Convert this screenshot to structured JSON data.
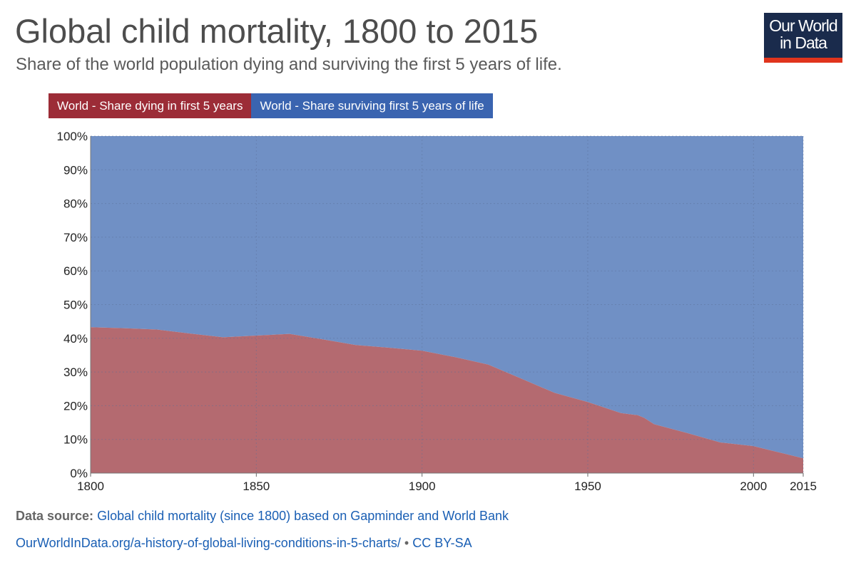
{
  "header": {
    "title": "Global child mortality, 1800 to 2015",
    "subtitle": "Share of the world population dying and surviving the first 5 years of life.",
    "logo_line1": "Our World",
    "logo_line2": "in Data"
  },
  "footer": {
    "source_label": "Data source:",
    "source_text": "Global child mortality (since 1800) based on Gapminder and World Bank",
    "url": "OurWorldInData.org/a-history-of-global-living-conditions-in-5-charts/",
    "separator": "•",
    "license": "CC BY-SA"
  },
  "colors": {
    "dying": "#b46a70",
    "surviving": "#7090c5",
    "legend_dying": "#9c2c37",
    "legend_surviving": "#3a64b0",
    "logo_bg": "#1a2b4c",
    "logo_accent": "#e0341d"
  },
  "chart_data": {
    "type": "area",
    "stacked": true,
    "title": "Global child mortality, 1800 to 2015",
    "subtitle": "Share of the world population dying and surviving the first 5 years of life.",
    "xlim": [
      1800,
      2015
    ],
    "ylim": [
      0,
      100
    ],
    "x_ticks": [
      1800,
      1850,
      1900,
      1950,
      2000,
      2015
    ],
    "y_ticks": [
      "0%",
      "10%",
      "20%",
      "30%",
      "40%",
      "50%",
      "60%",
      "70%",
      "80%",
      "90%",
      "100%"
    ],
    "grid": true,
    "legend_position": "top-left",
    "x": [
      1800,
      1810,
      1820,
      1830,
      1840,
      1850,
      1860,
      1870,
      1880,
      1890,
      1900,
      1910,
      1920,
      1930,
      1940,
      1950,
      1960,
      1965,
      1967,
      1970,
      1980,
      1990,
      2000,
      2005,
      2010,
      2015
    ],
    "series": [
      {
        "name": "World - Share dying in first 5 years",
        "values": [
          43.3,
          43.0,
          42.6,
          41.4,
          40.3,
          40.8,
          41.3,
          39.7,
          38.0,
          37.2,
          36.3,
          34.4,
          32.2,
          28.0,
          23.8,
          21.1,
          17.8,
          17.2,
          16.4,
          14.5,
          11.9,
          9.1,
          8.0,
          6.8,
          5.6,
          4.4
        ]
      },
      {
        "name": "World - Share surviving first 5 years of life",
        "values": [
          56.7,
          57.0,
          57.4,
          58.6,
          59.7,
          59.2,
          58.7,
          60.3,
          62.0,
          62.8,
          63.7,
          65.6,
          67.8,
          72.0,
          76.2,
          78.9,
          82.2,
          82.8,
          83.6,
          85.5,
          88.1,
          90.9,
          92.0,
          93.2,
          94.4,
          95.6
        ]
      }
    ]
  }
}
